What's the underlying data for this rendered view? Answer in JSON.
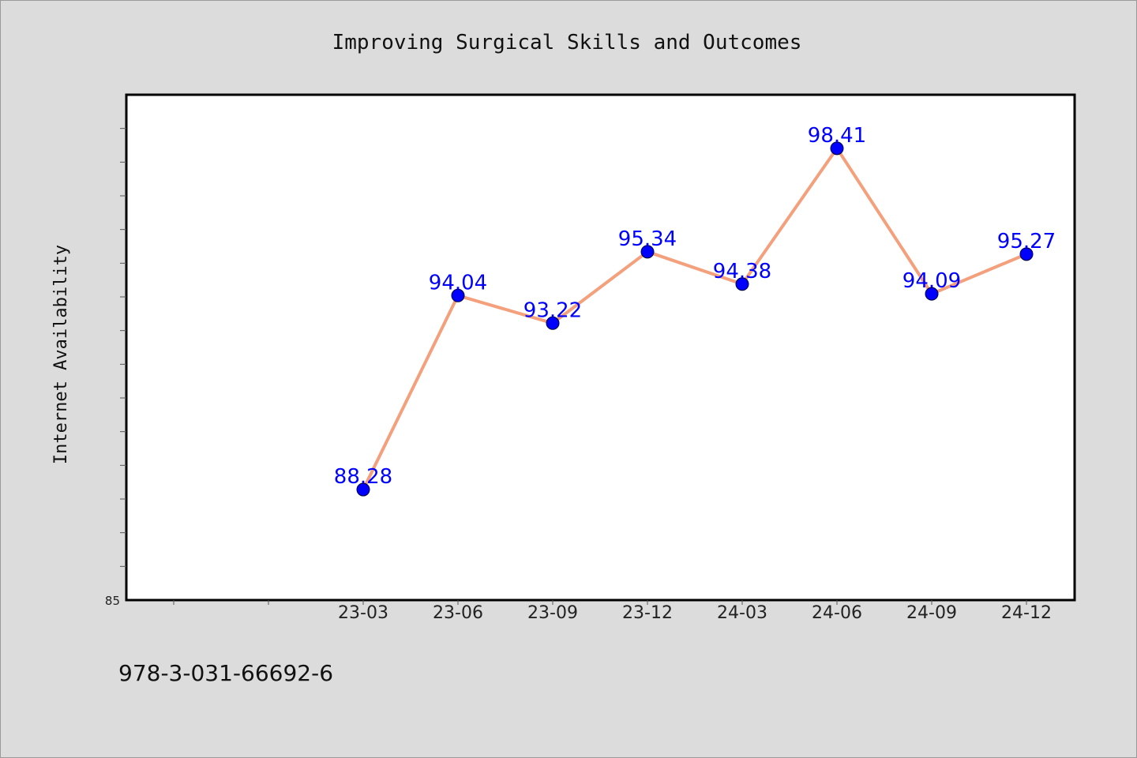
{
  "chart_data": {
    "type": "line",
    "title": "Improving Surgical Skills and Outcomes",
    "xlabel": "",
    "ylabel": "Internet Availability",
    "categories": [
      "23-03",
      "23-06",
      "23-09",
      "23-12",
      "24-03",
      "24-06",
      "24-09",
      "24-12"
    ],
    "series": [
      {
        "values": [
          88.28,
          94.04,
          93.22,
          95.34,
          94.38,
          98.41,
          94.09,
          95.27
        ]
      }
    ],
    "data_labels": [
      "88.28",
      "94.04",
      "93.22",
      "95.34",
      "94.38",
      "98.41",
      "94.09",
      "95.27"
    ],
    "ylim": [
      85,
      100
    ],
    "ytick_label": "85",
    "grid": false,
    "line_color": "#f4a07c",
    "marker_color": "#0000ff",
    "label_color": "#0000ff"
  },
  "footer": {
    "isbn": "978-3-031-66692-6"
  }
}
